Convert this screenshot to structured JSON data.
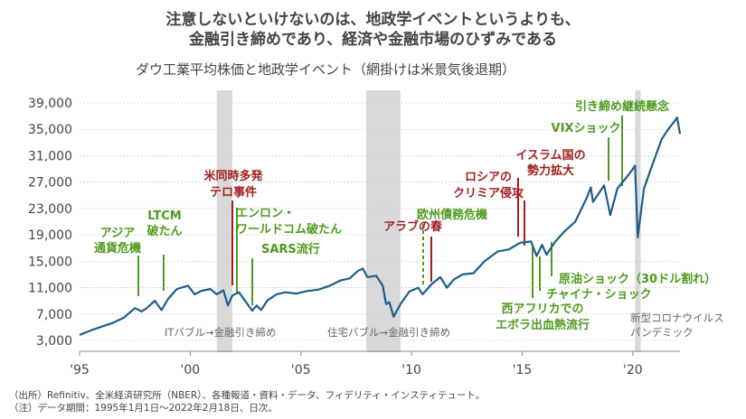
{
  "headline": {
    "line1": "注意しないといけないのは、地政学イベントというよりも、",
    "line2": "金融引き締めであり、経済や金融市場のひずみである"
  },
  "chart_data": {
    "type": "line",
    "title": "ダウ工業平均株価と地政学イベント（網掛けは米景気後退期）",
    "ylim": [
      3000,
      39000
    ],
    "yticks": [
      3000,
      7000,
      11000,
      15000,
      19000,
      23000,
      27000,
      31000,
      35000,
      39000
    ],
    "ytick_labels": [
      "3,000",
      "7,000",
      "11,000",
      "15,000",
      "19,000",
      "23,000",
      "27,000",
      "31,000",
      "35,000",
      "39,000"
    ],
    "xlim": [
      1995.0,
      2022.13
    ],
    "xticks": [
      1995,
      2000,
      2005,
      2010,
      2015,
      2020
    ],
    "xtick_labels": [
      "'95",
      "'00",
      "'05",
      "'10",
      "'15",
      "'20"
    ],
    "series": [
      {
        "color": "#1a5e8a",
        "points": [
          [
            1995.0,
            3830
          ],
          [
            1995.5,
            4500
          ],
          [
            1996.0,
            5100
          ],
          [
            1996.5,
            5650
          ],
          [
            1997.0,
            6450
          ],
          [
            1997.5,
            7900
          ],
          [
            1997.8,
            7400
          ],
          [
            1998.0,
            7800
          ],
          [
            1998.4,
            9000
          ],
          [
            1998.7,
            7600
          ],
          [
            1999.0,
            9300
          ],
          [
            1999.4,
            10800
          ],
          [
            1999.9,
            11300
          ],
          [
            2000.2,
            10000
          ],
          [
            2000.5,
            10500
          ],
          [
            2000.9,
            10800
          ],
          [
            2001.2,
            10000
          ],
          [
            2001.5,
            10600
          ],
          [
            2001.7,
            8300
          ],
          [
            2001.9,
            9800
          ],
          [
            2002.2,
            10300
          ],
          [
            2002.5,
            8900
          ],
          [
            2002.8,
            7500
          ],
          [
            2003.0,
            8300
          ],
          [
            2003.2,
            7600
          ],
          [
            2003.5,
            9100
          ],
          [
            2003.9,
            10000
          ],
          [
            2004.3,
            10300
          ],
          [
            2004.8,
            10100
          ],
          [
            2005.3,
            10500
          ],
          [
            2005.8,
            10700
          ],
          [
            2006.3,
            11300
          ],
          [
            2006.8,
            12100
          ],
          [
            2007.2,
            12400
          ],
          [
            2007.6,
            13600
          ],
          [
            2007.8,
            13900
          ],
          [
            2008.0,
            12600
          ],
          [
            2008.4,
            12800
          ],
          [
            2008.7,
            11300
          ],
          [
            2008.85,
            8500
          ],
          [
            2009.0,
            8800
          ],
          [
            2009.19,
            6600
          ],
          [
            2009.5,
            8500
          ],
          [
            2009.9,
            10400
          ],
          [
            2010.3,
            11000
          ],
          [
            2010.5,
            10000
          ],
          [
            2010.9,
            11500
          ],
          [
            2011.3,
            12600
          ],
          [
            2011.6,
            11000
          ],
          [
            2011.9,
            12200
          ],
          [
            2012.3,
            13000
          ],
          [
            2012.8,
            13200
          ],
          [
            2013.3,
            15000
          ],
          [
            2013.9,
            16500
          ],
          [
            2014.4,
            16800
          ],
          [
            2014.9,
            17800
          ],
          [
            2015.4,
            18000
          ],
          [
            2015.65,
            15800
          ],
          [
            2015.9,
            17500
          ],
          [
            2016.1,
            16000
          ],
          [
            2016.5,
            18000
          ],
          [
            2016.9,
            19500
          ],
          [
            2017.4,
            21000
          ],
          [
            2017.9,
            24500
          ],
          [
            2018.1,
            26200
          ],
          [
            2018.2,
            24000
          ],
          [
            2018.7,
            26500
          ],
          [
            2018.98,
            22000
          ],
          [
            2019.3,
            26000
          ],
          [
            2019.9,
            28500
          ],
          [
            2020.1,
            29500
          ],
          [
            2020.22,
            18600
          ],
          [
            2020.5,
            26000
          ],
          [
            2020.9,
            29800
          ],
          [
            2021.3,
            33500
          ],
          [
            2021.6,
            35000
          ],
          [
            2021.9,
            36300
          ],
          [
            2022.0,
            36800
          ],
          [
            2022.13,
            34300
          ]
        ]
      }
    ],
    "recessions": [
      [
        2001.2,
        2001.9
      ],
      [
        2007.95,
        2009.5
      ],
      [
        2020.1,
        2020.35
      ]
    ],
    "period_labels": [
      {
        "text": "ITバブル→金融引き締め",
        "x": 2001.5
      },
      {
        "text": "住宅バブル→金融引き締め",
        "x": 2009.9
      },
      {
        "text": "新型コロナウイルス",
        "x": 2020.2
      },
      {
        "text": "パンデミック",
        "x": 2020.2
      }
    ],
    "events": [
      {
        "lines": [
          "アジア",
          "通貨危機"
        ],
        "x": 1997.5,
        "color": "#4e9a1d",
        "dashed": false
      },
      {
        "lines": [
          "LTCM",
          "破たん"
        ],
        "x": 1998.7,
        "color": "#4e9a1d",
        "dashed": false
      },
      {
        "lines": [
          "米同時多発",
          "テロ事件"
        ],
        "x": 2001.7,
        "color": "#a01e1e",
        "dashed": false
      },
      {
        "lines": [
          "エンロン・",
          "ワールドコム破たん"
        ],
        "x": 2002.3,
        "color": "#4e9a1d",
        "dashed": false
      },
      {
        "lines": [
          "SARS流行"
        ],
        "x": 2003.2,
        "color": "#4e9a1d",
        "dashed": false
      },
      {
        "lines": [
          "アラブの春"
        ],
        "x": 2011.0,
        "color": "#a01e1e",
        "dashed": false
      },
      {
        "lines": [
          "欧州債務危機"
        ],
        "x": 2010.5,
        "color": "#4e9a1d",
        "dashed": true
      },
      {
        "lines": [
          "ロシアの",
          "クリミア侵攻"
        ],
        "x": 2014.2,
        "color": "#a01e1e",
        "dashed": false
      },
      {
        "lines": [
          "イスラム国の",
          "勢力拡大"
        ],
        "x": 2014.5,
        "color": "#a01e1e",
        "dashed": false
      },
      {
        "lines": [
          "西アフリカでの",
          "エボラ出血熱流行"
        ],
        "x": 2014.8,
        "color": "#4e9a1d",
        "dashed": false
      },
      {
        "lines": [
          "原油ショック（30ドル割れ）"
        ],
        "x": 2016.1,
        "color": "#4e9a1d",
        "dashed": false
      },
      {
        "lines": [
          "チャイナ・ショック"
        ],
        "x": 2015.6,
        "color": "#4e9a1d",
        "dashed": false
      },
      {
        "lines": [
          "VIXショック"
        ],
        "x": 2018.1,
        "color": "#4e9a1d",
        "dashed": false
      },
      {
        "lines": [
          "引き締め継続懸念"
        ],
        "x": 2018.9,
        "color": "#4e9a1d",
        "dashed": false
      }
    ]
  },
  "notes": {
    "source": "（出所）Refinitiv、全米経済研究所（NBER）、各種報道・資料・データ、フィデリティ・インスティテュート。",
    "period": "（注）データ期間：1995年1月1日～2022年2月18日、日次。"
  }
}
